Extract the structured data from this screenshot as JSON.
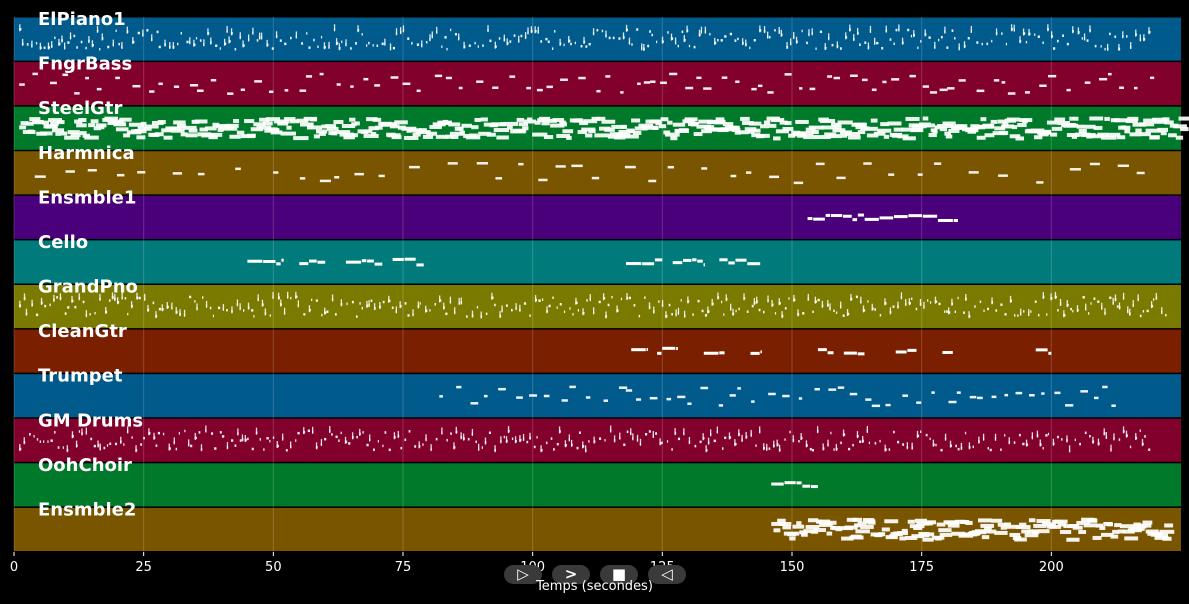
{
  "chart_data": {
    "type": "piano-roll",
    "xlabel": "Temps (secondes)",
    "xlim": [
      0,
      225
    ],
    "xticks": [
      0,
      25,
      50,
      75,
      100,
      125,
      150,
      175,
      200
    ],
    "grid": true,
    "tracks": [
      {
        "name": "ElPiano1",
        "color": "#005a8c",
        "start": 1,
        "end": 219,
        "density": "high"
      },
      {
        "name": "FngrBass",
        "color": "#82002c",
        "start": 1,
        "end": 222,
        "density": "medium"
      },
      {
        "name": "SteelGtr",
        "color": "#007a2a",
        "start": 1,
        "end": 225,
        "density": "very-high"
      },
      {
        "name": "Harmnica",
        "color": "#7a5500",
        "start": 4,
        "end": 217,
        "density": "low"
      },
      {
        "name": "Ensmble1",
        "color": "#4a007a",
        "segments": [
          [
            153,
            182
          ]
        ]
      },
      {
        "name": "Cello",
        "color": "#007a7a",
        "segments": [
          [
            45,
            52
          ],
          [
            55,
            60
          ],
          [
            64,
            71
          ],
          [
            73,
            79
          ],
          [
            118,
            125
          ],
          [
            127,
            133
          ],
          [
            136,
            144
          ]
        ]
      },
      {
        "name": "GrandPno",
        "color": "#7a7a00",
        "start": 1,
        "end": 222,
        "density": "high"
      },
      {
        "name": "CleanGtr",
        "color": "#7a1f00",
        "segments": [
          [
            119,
            122
          ],
          [
            124,
            128
          ],
          [
            133,
            137
          ],
          [
            142,
            144
          ],
          [
            155,
            158
          ],
          [
            160,
            164
          ],
          [
            170,
            174
          ],
          [
            179,
            181
          ],
          [
            197,
            200
          ]
        ]
      },
      {
        "name": "Trumpet",
        "color": "#005a8c",
        "start": 82,
        "end": 214,
        "density": "medium"
      },
      {
        "name": "GM Drums",
        "color": "#82002c",
        "start": 1,
        "end": 219,
        "density": "high"
      },
      {
        "name": "OohChoir",
        "color": "#007a2a",
        "segments": [
          [
            146,
            155
          ]
        ]
      },
      {
        "name": "Ensmble2",
        "color": "#7a5500",
        "start": 146,
        "end": 222,
        "density": "very-high"
      }
    ]
  },
  "controls": {
    "play_label": "▷",
    "forward_label": ">",
    "stop_label": "■",
    "back_label": "◁"
  }
}
